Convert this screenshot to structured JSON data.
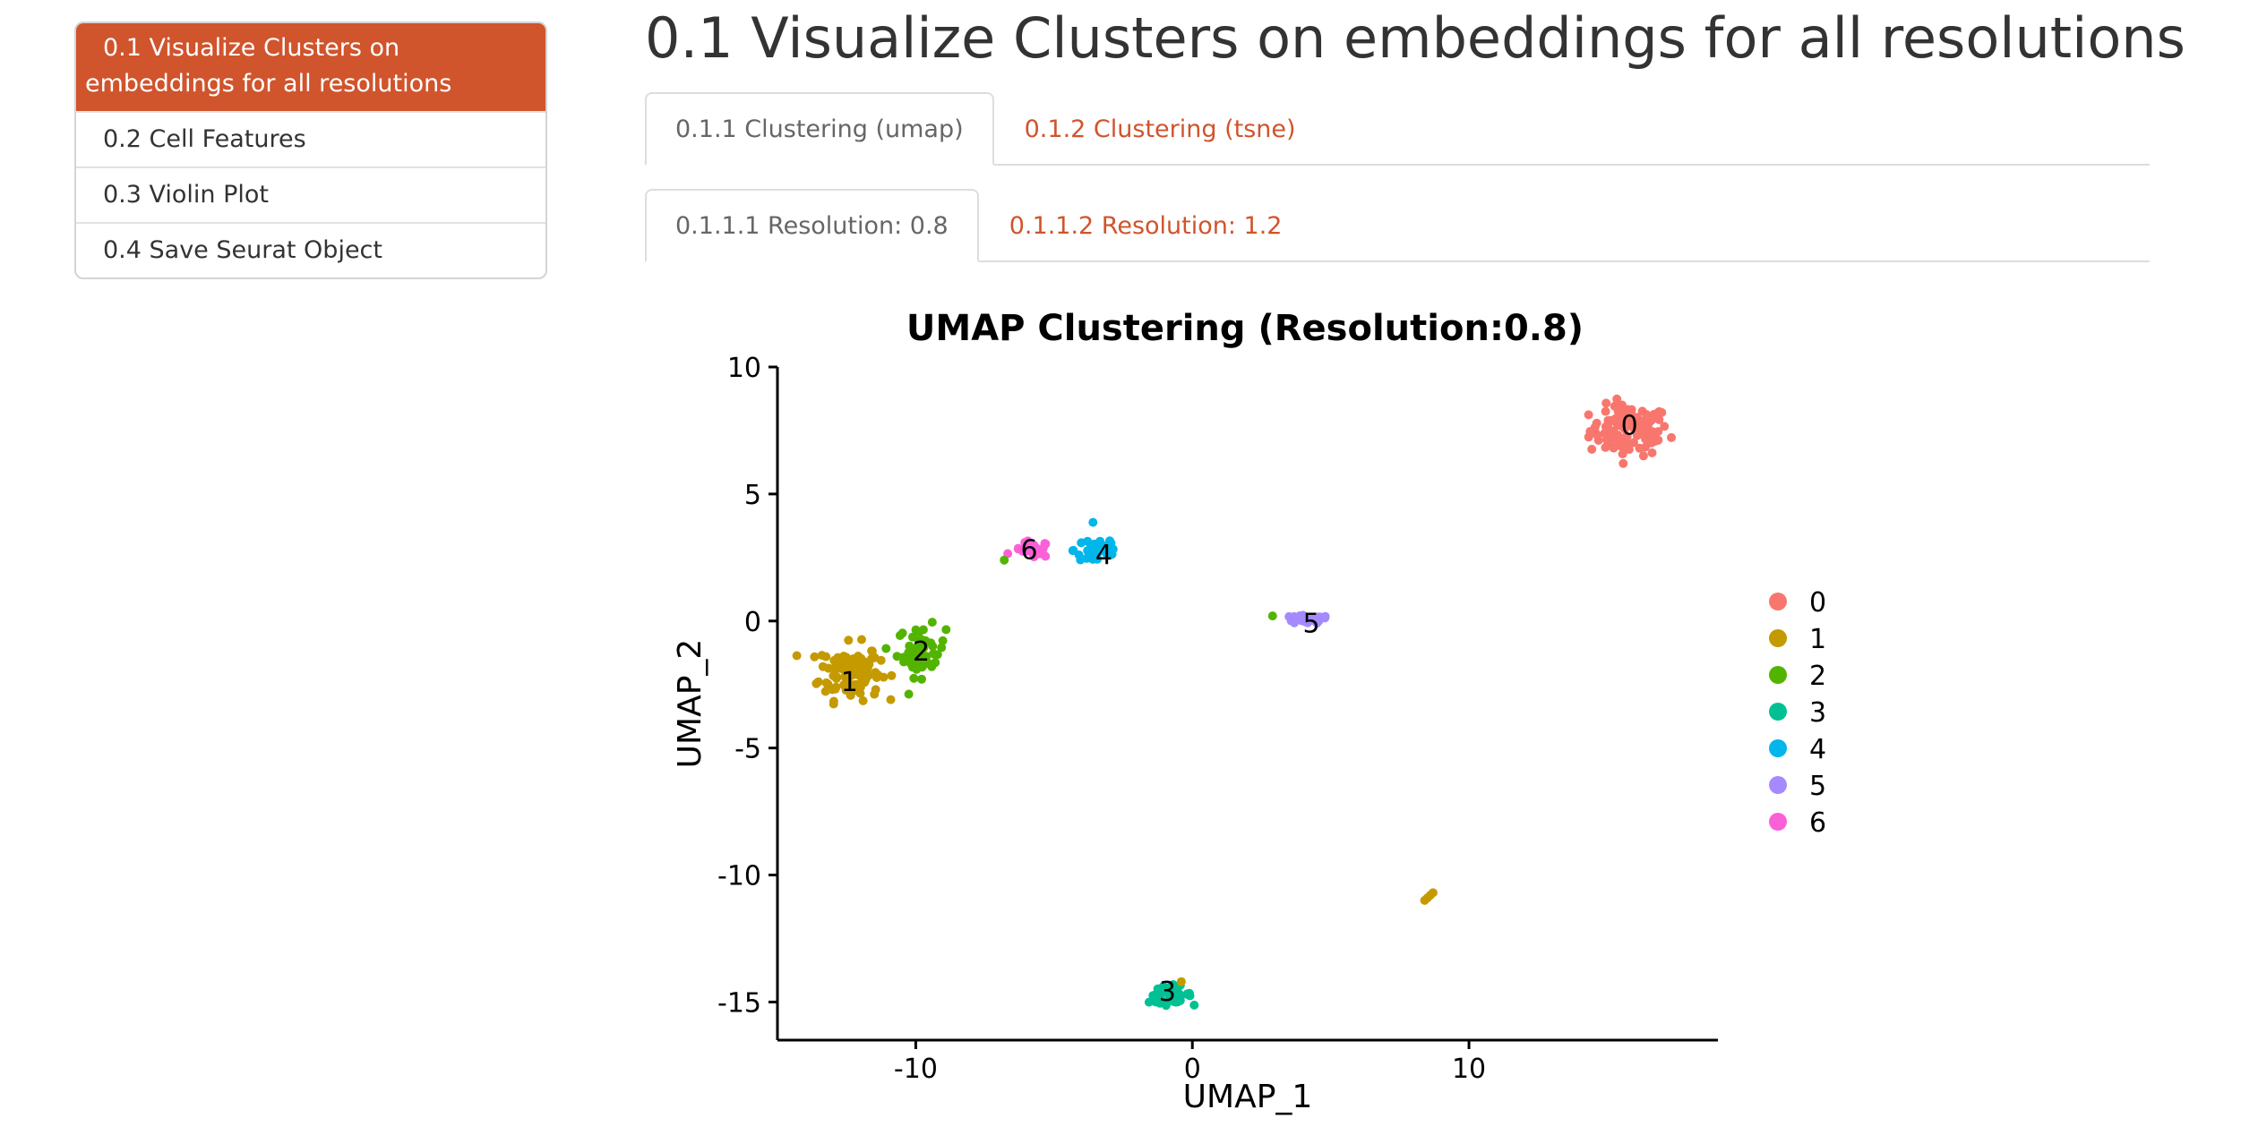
{
  "toc": {
    "items": [
      {
        "label": "0.1 Visualize Clusters on embeddings for all resolutions",
        "active": true
      },
      {
        "label": "0.2 Cell Features",
        "active": false
      },
      {
        "label": "0.3 Violin Plot",
        "active": false
      },
      {
        "label": "0.4 Save Seurat Object",
        "active": false
      }
    ]
  },
  "main": {
    "title": "0.1 Visualize Clusters on embeddings for all resolutions",
    "embedding_tabs": [
      {
        "label": "0.1.1 Clustering (umap)",
        "active": true
      },
      {
        "label": "0.1.2 Clustering (tsne)",
        "active": false
      }
    ],
    "resolution_tabs": [
      {
        "label": "0.1.1.1 Resolution: 0.8",
        "active": true
      },
      {
        "label": "0.1.1.2 Resolution: 1.2",
        "active": false
      }
    ]
  },
  "colors": {
    "accent": "#d0542c",
    "cluster_colors": [
      "#F8766D",
      "#C49A00",
      "#53B400",
      "#00C094",
      "#00B6EB",
      "#A58AFF",
      "#FB61D7"
    ]
  },
  "chart_data": {
    "type": "scatter",
    "title": "UMAP Clustering (Resolution:0.8)",
    "xlabel": "UMAP_1",
    "ylabel": "UMAP_2",
    "xlim": [
      -15,
      19
    ],
    "ylim": [
      -16.5,
      10
    ],
    "xticks": [
      -10,
      0,
      10
    ],
    "yticks": [
      10,
      5,
      0,
      -5,
      -10,
      -15
    ],
    "tick_labels_x": [
      "-10",
      "0",
      "10"
    ],
    "tick_labels_y": [
      "10",
      "5",
      "0",
      "-5",
      "-10",
      "-15"
    ],
    "grid": false,
    "legend": {
      "placement": "right",
      "labels": [
        "0",
        "1",
        "2",
        "3",
        "4",
        "5",
        "6"
      ]
    },
    "clusters": [
      {
        "name": "0",
        "center": [
          15.8,
          7.5
        ],
        "spread": [
          1.3,
          0.9
        ],
        "count": 110
      },
      {
        "name": "1",
        "center": [
          -12.4,
          -2.0
        ],
        "spread": [
          1.0,
          1.0
        ],
        "count": 120
      },
      {
        "name": "2",
        "center": [
          -9.8,
          -1.2
        ],
        "spread": [
          0.8,
          0.9
        ],
        "count": 55
      },
      {
        "name": "3",
        "center": [
          -0.8,
          -14.7
        ],
        "spread": [
          0.7,
          0.3
        ],
        "count": 45
      },
      {
        "name": "4",
        "center": [
          -3.4,
          2.8
        ],
        "spread": [
          0.8,
          0.6
        ],
        "count": 40
      },
      {
        "name": "5",
        "center": [
          4.1,
          0.05
        ],
        "spread": [
          0.8,
          0.15
        ],
        "count": 35
      },
      {
        "name": "6",
        "center": [
          -5.8,
          2.8
        ],
        "spread": [
          0.6,
          0.3
        ],
        "count": 25
      }
    ],
    "extra_points": [
      {
        "cluster": "1",
        "x": 8.4,
        "y": -11.0
      },
      {
        "cluster": "1",
        "x": 8.6,
        "y": -10.8
      },
      {
        "cluster": "1",
        "x": 8.5,
        "y": -10.9
      },
      {
        "cluster": "1",
        "x": 8.7,
        "y": -10.7
      },
      {
        "cluster": "2",
        "x": 2.9,
        "y": 0.2
      },
      {
        "cluster": "2",
        "x": -6.8,
        "y": 2.4
      },
      {
        "cluster": "1",
        "x": -0.4,
        "y": -14.2
      }
    ],
    "cluster_labels": [
      {
        "text": "0",
        "x": 15.8,
        "y": 7.7
      },
      {
        "text": "1",
        "x": -12.4,
        "y": -2.4
      },
      {
        "text": "2",
        "x": -9.8,
        "y": -1.2
      },
      {
        "text": "3",
        "x": -0.9,
        "y": -14.6
      },
      {
        "text": "4",
        "x": -3.2,
        "y": 2.6
      },
      {
        "text": "5",
        "x": 4.3,
        "y": -0.1
      },
      {
        "text": "6",
        "x": -5.9,
        "y": 2.8
      }
    ]
  }
}
